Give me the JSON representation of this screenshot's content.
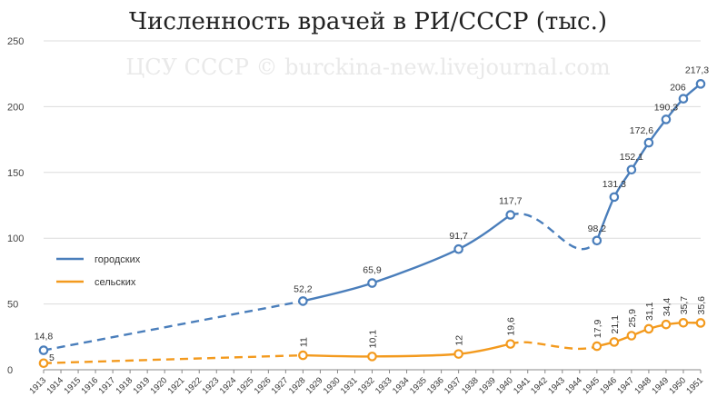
{
  "chart_data": {
    "type": "line",
    "title": "Численность врачей в РИ/СССР (тыс.)",
    "watermark": "ЦСУ СССР © burckina-new.livejournal.com",
    "ylim": [
      0,
      250
    ],
    "yticks": [
      0,
      50,
      100,
      150,
      200,
      250
    ],
    "xlim": [
      1913,
      1951
    ],
    "xticks": [
      1913,
      1914,
      1915,
      1916,
      1917,
      1918,
      1919,
      1920,
      1921,
      1922,
      1923,
      1924,
      1925,
      1926,
      1927,
      1928,
      1929,
      1930,
      1931,
      1932,
      1933,
      1934,
      1935,
      1936,
      1937,
      1938,
      1939,
      1940,
      1941,
      1942,
      1943,
      1944,
      1945,
      1946,
      1947,
      1948,
      1949,
      1950,
      1951
    ],
    "grid": "horizontal",
    "legend_position": "left-middle",
    "series": [
      {
        "name": "городских",
        "color": "#4a7ebb",
        "points": [
          {
            "x": 1913,
            "y": 14.8,
            "label": "14,8"
          },
          {
            "x": 1928,
            "y": 52.2,
            "label": "52,2"
          },
          {
            "x": 1932,
            "y": 65.9,
            "label": "65,9"
          },
          {
            "x": 1937,
            "y": 91.7,
            "label": "91,7"
          },
          {
            "x": 1940,
            "y": 117.7,
            "label": "117,7"
          },
          {
            "x": 1945,
            "y": 98.2,
            "label": "98,2"
          },
          {
            "x": 1946,
            "y": 131.3,
            "label": "131,3"
          },
          {
            "x": 1947,
            "y": 152.1,
            "label": "152,1"
          },
          {
            "x": 1948,
            "y": 172.6,
            "label": "172,6"
          },
          {
            "x": 1949,
            "y": 190.3,
            "label": "190,3"
          },
          {
            "x": 1950,
            "y": 206,
            "label": "206"
          },
          {
            "x": 1951,
            "y": 217.3,
            "label": "217,3"
          }
        ]
      },
      {
        "name": "сельских",
        "color": "#f39a1e",
        "points": [
          {
            "x": 1913,
            "y": 5,
            "label": "5"
          },
          {
            "x": 1928,
            "y": 11,
            "label": "11"
          },
          {
            "x": 1932,
            "y": 10.1,
            "label": "10,1"
          },
          {
            "x": 1937,
            "y": 12,
            "label": "12"
          },
          {
            "x": 1940,
            "y": 19.6,
            "label": "19,6"
          },
          {
            "x": 1945,
            "y": 17.9,
            "label": "17,9"
          },
          {
            "x": 1946,
            "y": 21.1,
            "label": "21,1"
          },
          {
            "x": 1947,
            "y": 25.9,
            "label": "25,9"
          },
          {
            "x": 1948,
            "y": 31.1,
            "label": "31,1"
          },
          {
            "x": 1949,
            "y": 34.4,
            "label": "34,4"
          },
          {
            "x": 1950,
            "y": 35.7,
            "label": "35,7"
          },
          {
            "x": 1951,
            "y": 35.6,
            "label": "35,6"
          }
        ]
      }
    ]
  }
}
